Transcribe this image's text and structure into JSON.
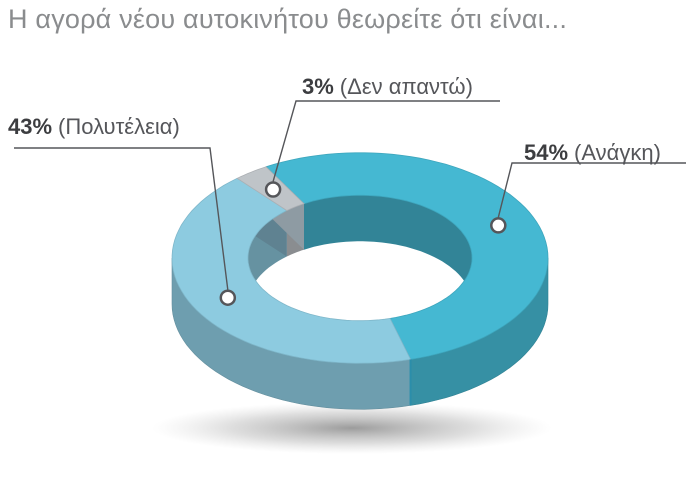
{
  "title": "Η αγορά νέου αυτοκινήτου θεωρείτε ότι είναι...",
  "chart_data": {
    "type": "pie",
    "style": "3d-donut",
    "title": "Η αγορά νέου αυτοκινήτου θεωρείτε ότι είναι...",
    "slices": [
      {
        "label": "Ανάγκη",
        "value": 54,
        "display": "54%",
        "color": "#45b8d2"
      },
      {
        "label": "Πολυτέλεια",
        "value": 43,
        "display": "43%",
        "color": "#8dcbe0"
      },
      {
        "label": "Δεν απαντώ",
        "value": 3,
        "display": "3%",
        "color": "#bfc4c8"
      }
    ]
  }
}
